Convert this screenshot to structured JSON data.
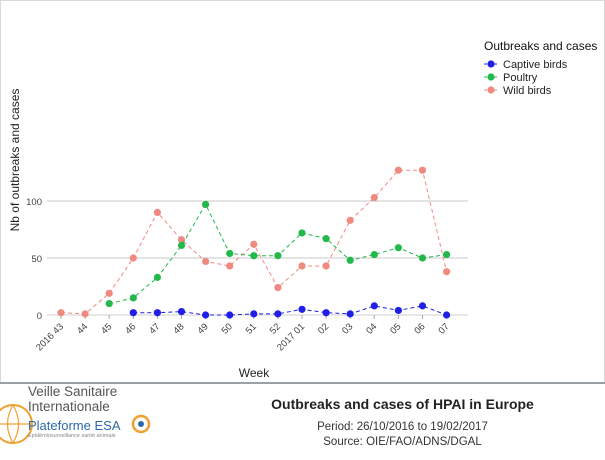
{
  "chart_data": {
    "type": "line",
    "ylabel": "Nb of outbreaks and cases",
    "xlabel": "Week",
    "categories": [
      "2016 43",
      "44",
      "45",
      "46",
      "47",
      "48",
      "49",
      "50",
      "51",
      "52",
      "2017 01",
      "02",
      "03",
      "04",
      "05",
      "06",
      "07"
    ],
    "yticks": [
      0,
      50,
      100
    ],
    "ylim": [
      -5,
      130
    ],
    "grid": true,
    "legend": {
      "title": "Outbreaks and cases",
      "position": "top-right"
    },
    "series": [
      {
        "name": "Captive birds",
        "color": "#1f1fe6",
        "values": [
          null,
          null,
          null,
          2,
          2,
          3,
          0,
          0,
          1,
          1,
          5,
          2,
          1,
          8,
          4,
          8,
          0
        ]
      },
      {
        "name": "Poultry",
        "color": "#22b84a",
        "values": [
          null,
          null,
          10,
          15,
          33,
          61,
          97,
          54,
          52,
          52,
          72,
          67,
          48,
          53,
          59,
          50,
          53
        ]
      },
      {
        "name": "Wild birds",
        "color": "#f08a80",
        "values": [
          2,
          1,
          19,
          50,
          90,
          66,
          47,
          43,
          62,
          24,
          43,
          43,
          83,
          103,
          127,
          127,
          38
        ]
      }
    ]
  },
  "footer": {
    "title": "Outbreaks and cases of HPAI in Europe",
    "period": "Period: 26/10/2016 to 19/02/2017",
    "source": "Source: OIE/FAO/ADNS/DGAL"
  },
  "logo": {
    "line1": "Veille Sanitaire",
    "line2": "Internationale",
    "line3": "Plateforme ESA",
    "line4": "Epidémiosurveillance santé animale"
  }
}
